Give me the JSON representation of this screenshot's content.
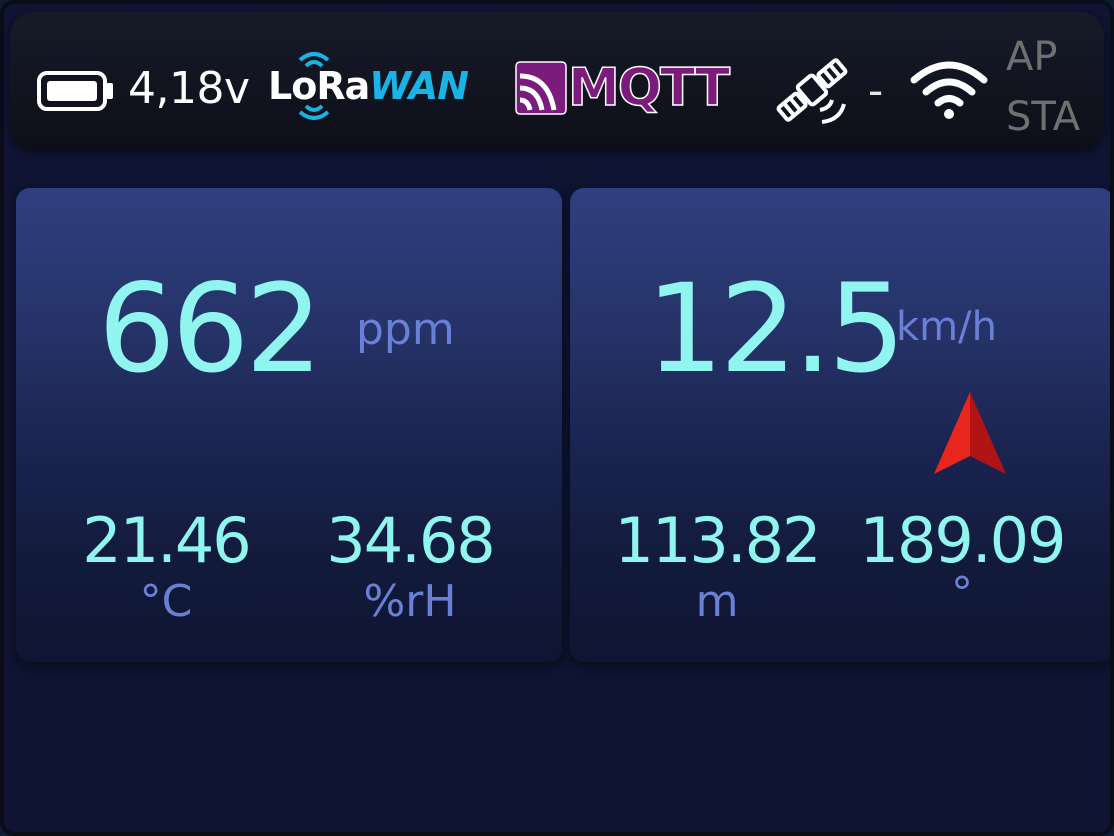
{
  "status_bar": {
    "battery_voltage": "4,18v",
    "battery_icon": "battery-icon",
    "lorawan": {
      "lora": "LoRa",
      "wan": "WAN"
    },
    "mqtt": "MQTT",
    "gps_icon": "satellite-icon",
    "gps_status": "-",
    "wifi_icon": "wifi-icon",
    "wifi_modes": [
      "AP",
      "STA"
    ]
  },
  "co2_card": {
    "co2_value": "662",
    "co2_unit": "ppm",
    "temperature_value": "21.46",
    "temperature_unit": "°C",
    "humidity_value": "34.68",
    "humidity_unit": "%rH"
  },
  "gps_card": {
    "speed_value": "12.5",
    "speed_unit": "km/h",
    "heading_icon": "navigation-arrow-icon",
    "altitude_value": "113.82",
    "altitude_unit": "m",
    "course_value": "189.09",
    "course_unit": "°"
  },
  "colors": {
    "value": "#8ff5ee",
    "unit": "#6a7fd6",
    "lorawan_accent": "#19b3e6",
    "mqtt_brand": "#7b1b7c",
    "heading_arrow": "#e01e1e"
  }
}
